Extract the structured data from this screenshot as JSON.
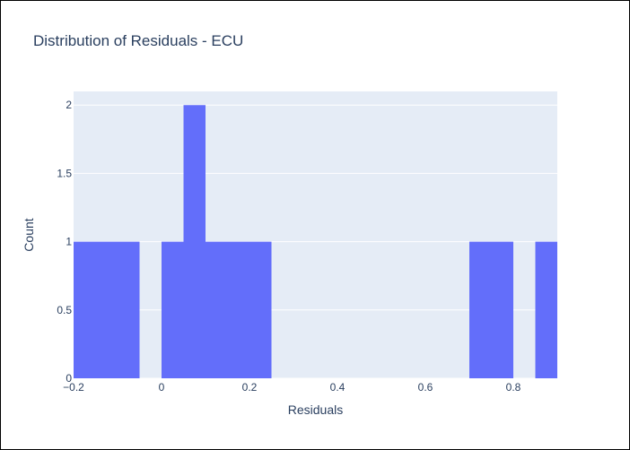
{
  "chart_data": {
    "type": "bar",
    "title": "Distribution of Residuals - ECU",
    "xlabel": "Residuals",
    "ylabel": "Count",
    "xlim": [
      -0.2,
      0.9
    ],
    "ylim": [
      0,
      2.1
    ],
    "x_ticks": [
      {
        "value": -0.2,
        "label": "−0.2"
      },
      {
        "value": 0,
        "label": "0"
      },
      {
        "value": 0.2,
        "label": "0.2"
      },
      {
        "value": 0.4,
        "label": "0.4"
      },
      {
        "value": 0.6,
        "label": "0.6"
      },
      {
        "value": 0.8,
        "label": "0.8"
      }
    ],
    "y_ticks": [
      {
        "value": 0,
        "label": "0"
      },
      {
        "value": 0.5,
        "label": "0.5"
      },
      {
        "value": 1,
        "label": "1"
      },
      {
        "value": 1.5,
        "label": "1.5"
      },
      {
        "value": 2,
        "label": "2"
      }
    ],
    "bins": [
      {
        "x0": -0.2,
        "x1": -0.05,
        "count": 1
      },
      {
        "x0": 0.0,
        "x1": 0.05,
        "count": 1
      },
      {
        "x0": 0.05,
        "x1": 0.1,
        "count": 2
      },
      {
        "x0": 0.1,
        "x1": 0.25,
        "count": 1
      },
      {
        "x0": 0.7,
        "x1": 0.8,
        "count": 1
      },
      {
        "x0": 0.85,
        "x1": 0.9,
        "count": 1
      }
    ],
    "grid": true,
    "colors": {
      "bar": "#636efa",
      "plot_bg": "#e5ecf6",
      "grid": "#ffffff",
      "text": "#2a3f5f"
    }
  }
}
